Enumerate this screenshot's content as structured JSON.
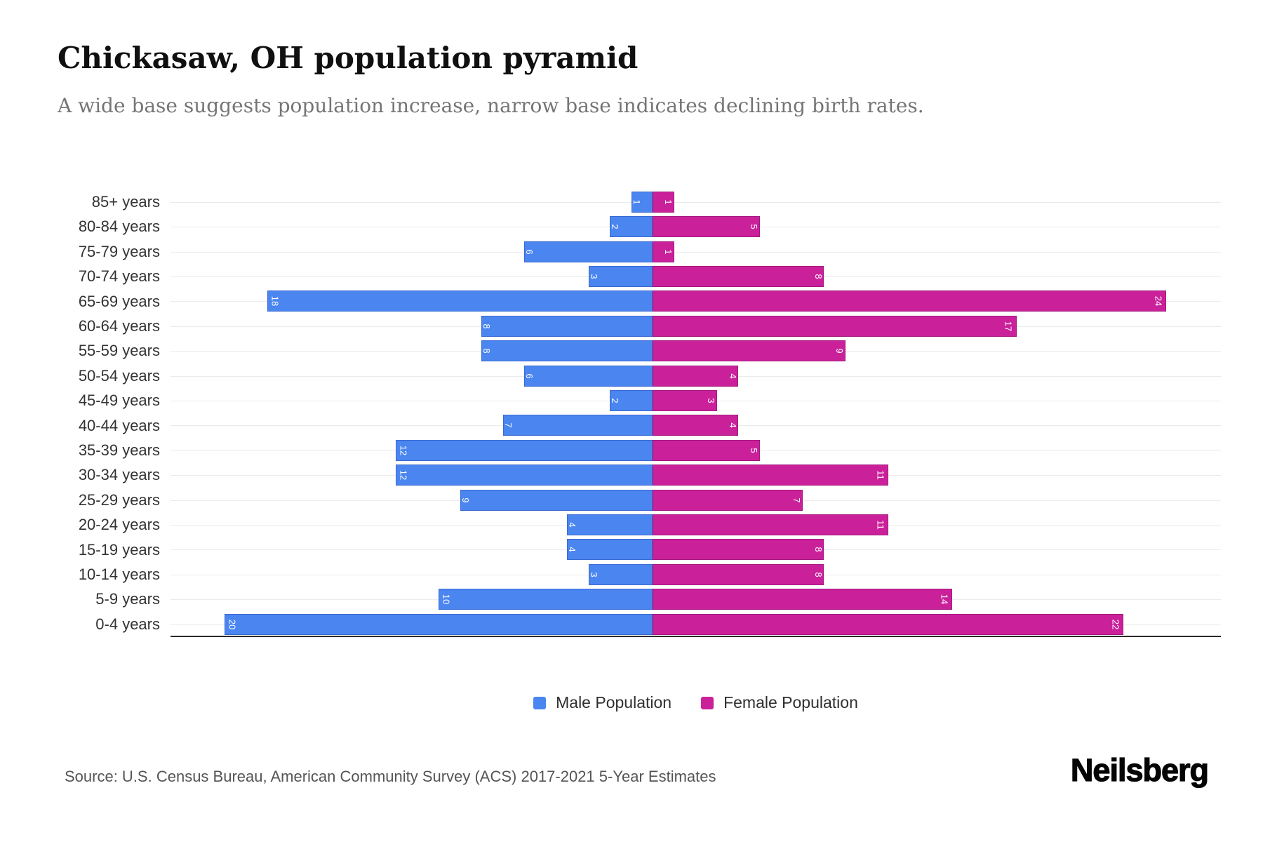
{
  "chart_data": {
    "type": "bar",
    "subtype": "population-pyramid",
    "title": "Chickasaw, OH population pyramid",
    "subtitle": "A wide base suggests population increase, narrow base indicates declining birth rates.",
    "categories": [
      "85+ years",
      "80-84 years",
      "75-79 years",
      "70-74 years",
      "65-69 years",
      "60-64 years",
      "55-59 years",
      "50-54 years",
      "45-49 years",
      "40-44 years",
      "35-39 years",
      "30-34 years",
      "25-29 years",
      "20-24 years",
      "15-19 years",
      "10-14 years",
      "5-9 years",
      "0-4 years"
    ],
    "series": [
      {
        "name": "Male Population",
        "side": "left",
        "color": "#4A85F0",
        "values": [
          1,
          2,
          6,
          3,
          18,
          8,
          8,
          6,
          2,
          7,
          12,
          12,
          9,
          4,
          4,
          3,
          10,
          20
        ]
      },
      {
        "name": "Female Population",
        "side": "right",
        "color": "#CA219B",
        "values": [
          1,
          5,
          1,
          8,
          24,
          17,
          9,
          4,
          3,
          4,
          5,
          11,
          7,
          11,
          8,
          8,
          14,
          22
        ]
      }
    ],
    "xlabel": "",
    "ylabel": "",
    "x_axis_range": [
      -22.5,
      26.5
    ],
    "x_tick_labels_visible": false,
    "y_gridlines": true,
    "value_label_style": "inside-end, rotated 90deg, white",
    "legend_position": "bottom-center"
  },
  "footer": {
    "source": "Source: U.S. Census Bureau, American Community Survey (ACS) 2017-2021 5-Year Estimates",
    "logo": "Neilsberg"
  }
}
